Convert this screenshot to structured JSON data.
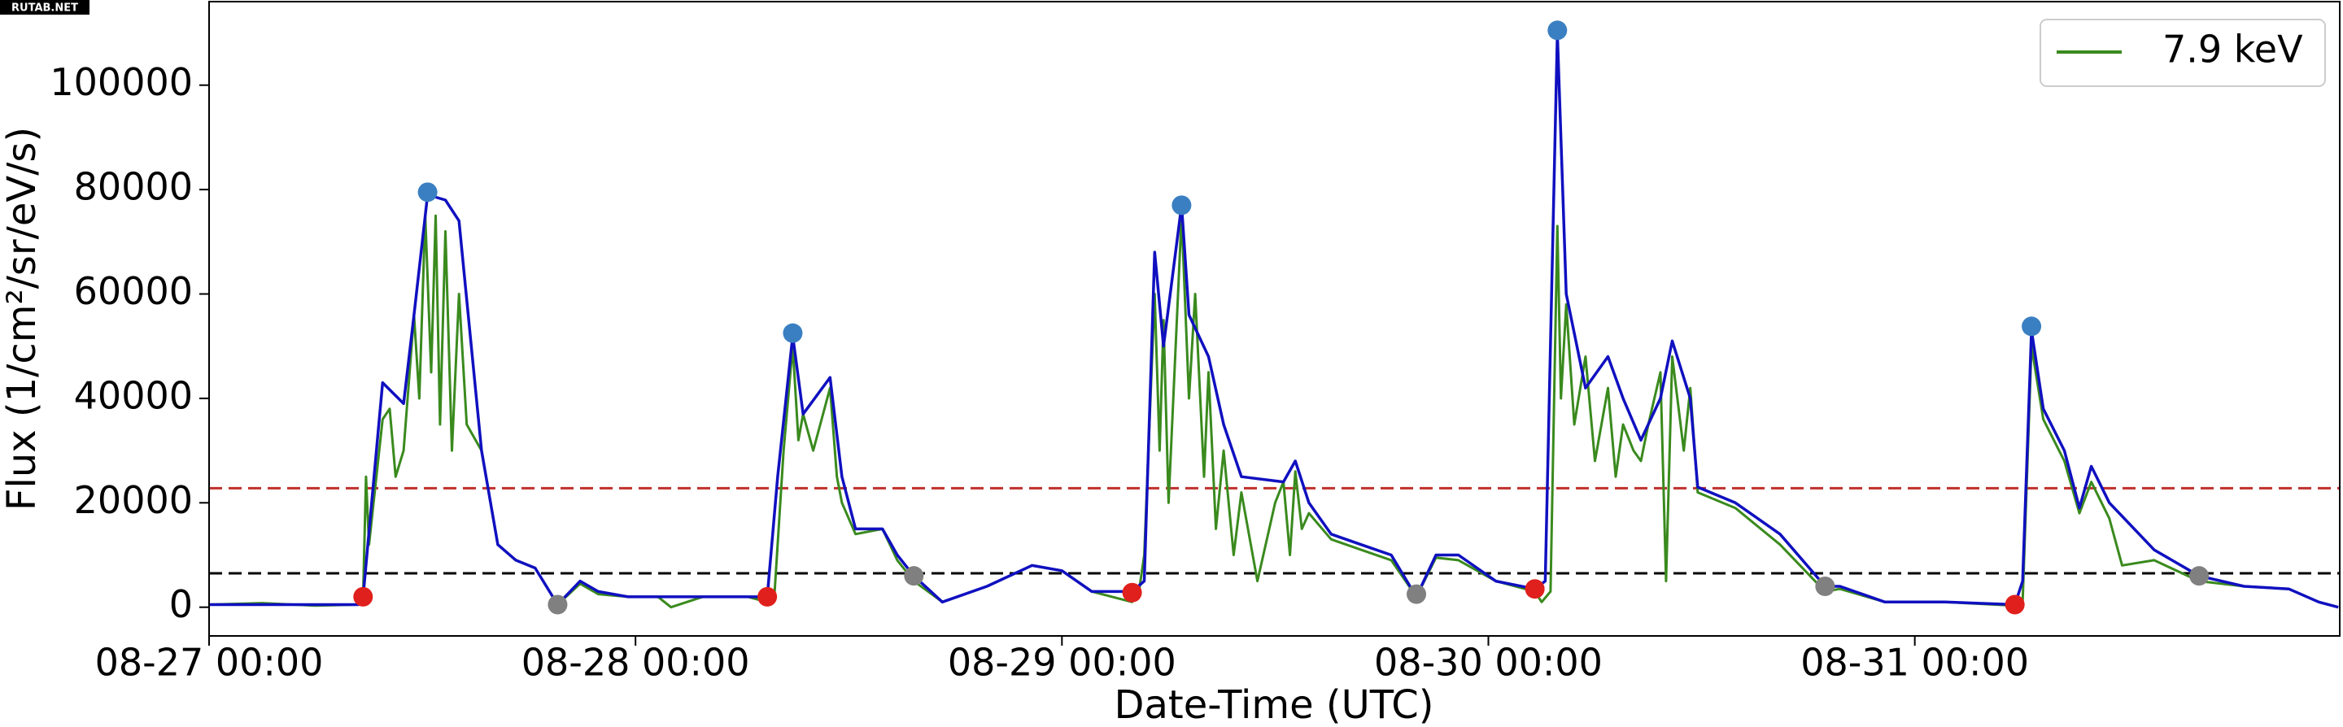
{
  "watermark": "RUTAB.NET",
  "chart_data": {
    "type": "line",
    "xlabel": "Date-Time (UTC)",
    "ylabel": "Flux (1/cm²/sr/eV/s)",
    "xlim": [
      "08-27 00:00",
      "08-31 23:55"
    ],
    "xticks": [
      "08-27 00:00",
      "08-28 00:00",
      "08-29 00:00",
      "08-30 00:00",
      "08-31 00:00"
    ],
    "ylim": [
      -5500,
      116000
    ],
    "yticks": [
      0,
      20000,
      40000,
      60000,
      80000,
      100000
    ],
    "legend": "upper right",
    "series": [
      {
        "name": "7.9 keV",
        "color": "#3a8a1e",
        "x": [
          "08-27 00:00",
          "08-27 03:00",
          "08-27 06:00",
          "08-27 08:25",
          "08-27 08:40",
          "08-27 08:50",
          "08-27 09:00",
          "08-27 09:46",
          "08-27 10:10",
          "08-27 10:30",
          "08-27 10:57",
          "08-27 11:32",
          "08-27 11:50",
          "08-27 12:10",
          "08-27 12:30",
          "08-27 12:45",
          "08-27 13:00",
          "08-27 13:18",
          "08-27 13:40",
          "08-27 14:04",
          "08-27 14:30",
          "08-27 15:20",
          "08-27 16:15",
          "08-27 17:16",
          "08-27 18:21",
          "08-27 19:37",
          "08-27 20:53",
          "08-27 21:54",
          "08-27 23:35",
          "08-28 01:16",
          "08-28 02:00",
          "08-28 03:47",
          "08-28 06:19",
          "08-28 07:25",
          "08-28 07:50",
          "08-28 08:20",
          "08-28 08:51",
          "08-28 09:10",
          "08-28 09:26",
          "08-28 10:00",
          "08-28 10:57",
          "08-28 11:20",
          "08-28 11:37",
          "08-28 12:23",
          "08-28 13:54",
          "08-28 14:44",
          "08-28 15:40",
          "08-28 17:16",
          "08-28 19:47",
          "08-28 22:19",
          "08-29 00:00",
          "08-29 01:41",
          "08-29 03:57",
          "08-29 04:20",
          "08-29 04:38",
          "08-29 05:13",
          "08-29 05:30",
          "08-29 05:43",
          "08-29 06:00",
          "08-29 06:44",
          "08-29 07:09",
          "08-29 07:30",
          "08-29 08:00",
          "08-29 08:15",
          "08-29 08:40",
          "08-29 09:06",
          "08-29 09:40",
          "08-29 10:06",
          "08-29 11:00",
          "08-29 12:00",
          "08-29 12:28",
          "08-29 12:50",
          "08-29 13:08",
          "08-29 13:30",
          "08-29 13:54",
          "08-29 15:09",
          "08-29 16:50",
          "08-29 18:32",
          "08-29 19:57",
          "08-29 21:03",
          "08-29 22:19",
          "08-30 00:25",
          "08-30 02:37",
          "08-30 03:00",
          "08-30 03:30",
          "08-30 03:53",
          "08-30 04:05",
          "08-30 04:23",
          "08-30 04:50",
          "08-30 05:28",
          "08-30 06:00",
          "08-30 06:44",
          "08-30 07:10",
          "08-30 07:35",
          "08-30 08:10",
          "08-30 08:35",
          "08-30 09:00",
          "08-30 09:41",
          "08-30 10:00",
          "08-30 10:21",
          "08-30 11:00",
          "08-30 11:22",
          "08-30 11:47",
          "08-30 13:54",
          "08-30 16:25",
          "08-30 18:57",
          "08-30 19:47",
          "08-30 22:19",
          "08-31 01:41",
          "08-31 05:38",
          "08-31 06:04",
          "08-31 06:34",
          "08-31 07:14",
          "08-31 08:25",
          "08-31 09:16",
          "08-31 09:56",
          "08-31 10:57",
          "08-31 11:40",
          "08-31 13:28",
          "08-31 16:00",
          "08-31 18:32",
          "08-31 21:03",
          "08-31 22:44",
          "08-31 23:50"
        ],
        "values": [
          500,
          800,
          300,
          500,
          2000,
          25000,
          12000,
          36000,
          38000,
          25000,
          30000,
          56000,
          40000,
          75000,
          45000,
          75000,
          35000,
          72000,
          30000,
          60000,
          35000,
          30000,
          12000,
          9000,
          7500,
          500,
          4500,
          2500,
          2000,
          2000,
          0,
          2000,
          2000,
          1000,
          3000,
          30000,
          50000,
          32000,
          37000,
          30000,
          42000,
          25000,
          20000,
          14000,
          15000,
          9000,
          5000,
          1000,
          4000,
          8000,
          7000,
          3000,
          1000,
          3000,
          10000,
          60000,
          30000,
          55000,
          20000,
          75000,
          40000,
          60000,
          25000,
          45000,
          15000,
          30000,
          10000,
          22000,
          5000,
          20000,
          24000,
          10000,
          26000,
          15000,
          18000,
          13000,
          11000,
          9000,
          2000,
          9500,
          9000,
          5000,
          3000,
          1000,
          3000,
          73000,
          40000,
          58000,
          35000,
          48000,
          28000,
          42000,
          25000,
          35000,
          30000,
          28000,
          35000,
          45000,
          5000,
          48000,
          30000,
          42000,
          22000,
          19000,
          12000,
          3000,
          3500,
          1000,
          1000,
          300,
          1000,
          50000,
          36000,
          28000,
          18000,
          24000,
          17000,
          8000,
          9000,
          5000,
          4000,
          3500,
          1000,
          0
        ]
      },
      {
        "color": "#1010c0",
        "x": [
          "08-27 00:00",
          "08-27 08:25",
          "08-27 08:40",
          "08-27 09:46",
          "08-27 10:57",
          "08-27 11:32",
          "08-27 12:18",
          "08-27 13:18",
          "08-27 14:04",
          "08-27 15:20",
          "08-27 16:15",
          "08-27 17:16",
          "08-27 18:21",
          "08-27 19:37",
          "08-27 20:53",
          "08-27 21:54",
          "08-27 23:35",
          "08-28 01:16",
          "08-28 03:47",
          "08-28 06:19",
          "08-28 07:25",
          "08-28 08:00",
          "08-28 08:51",
          "08-28 09:26",
          "08-28 10:57",
          "08-28 11:37",
          "08-28 12:23",
          "08-28 13:54",
          "08-28 14:44",
          "08-28 15:40",
          "08-28 17:16",
          "08-28 19:47",
          "08-28 22:19",
          "08-29 00:00",
          "08-29 01:41",
          "08-29 03:57",
          "08-29 04:38",
          "08-29 05:13",
          "08-29 05:43",
          "08-29 06:44",
          "08-29 07:09",
          "08-29 08:15",
          "08-29 09:06",
          "08-29 10:06",
          "08-29 12:28",
          "08-29 13:08",
          "08-29 13:54",
          "08-29 15:09",
          "08-29 16:50",
          "08-29 18:32",
          "08-29 19:57",
          "08-29 21:03",
          "08-29 22:19",
          "08-30 00:25",
          "08-30 02:37",
          "08-30 03:12",
          "08-30 03:53",
          "08-30 04:23",
          "08-30 05:28",
          "08-30 06:44",
          "08-30 07:35",
          "08-30 08:35",
          "08-30 09:41",
          "08-30 10:21",
          "08-30 11:22",
          "08-30 11:47",
          "08-30 13:54",
          "08-30 16:25",
          "08-30 18:57",
          "08-30 19:47",
          "08-30 22:19",
          "08-31 01:41",
          "08-31 05:38",
          "08-31 06:04",
          "08-31 06:34",
          "08-31 07:14",
          "08-31 08:25",
          "08-31 09:16",
          "08-31 09:56",
          "08-31 10:57",
          "08-31 13:28",
          "08-31 16:00",
          "08-31 18:32",
          "08-31 21:03",
          "08-31 22:44",
          "08-31 23:50"
        ],
        "values": [
          500,
          500,
          2000,
          43000,
          39000,
          56000,
          79000,
          78000,
          74000,
          30000,
          12000,
          9000,
          7500,
          500,
          5000,
          3000,
          2000,
          2000,
          2000,
          2000,
          2000,
          25000,
          52000,
          37000,
          44000,
          25000,
          15000,
          15000,
          10000,
          6000,
          1000,
          4000,
          8000,
          7000,
          3000,
          3000,
          5000,
          68000,
          50000,
          77000,
          56000,
          48000,
          35000,
          25000,
          24000,
          28000,
          20000,
          14000,
          12000,
          10000,
          2000,
          10000,
          10000,
          5000,
          3500,
          5000,
          110000,
          60000,
          42000,
          48000,
          40000,
          32000,
          40000,
          51000,
          40000,
          23000,
          20000,
          14000,
          4000,
          4000,
          1000,
          1000,
          500,
          5000,
          53000,
          38000,
          30000,
          19000,
          27000,
          20000,
          11000,
          6000,
          4000,
          3500,
          1000,
          0
        ]
      }
    ],
    "points": [
      {
        "color": "#3a7fc1",
        "x": [
          "08-27 12:18",
          "08-28 08:51",
          "08-29 06:44",
          "08-30 03:53",
          "08-31 06:34"
        ],
        "values": [
          79500,
          52500,
          77000,
          110500,
          53800
        ]
      },
      {
        "color": "#e0201c",
        "x": [
          "08-27 08:40",
          "08-28 07:25",
          "08-29 03:57",
          "08-30 02:37",
          "08-31 05:38"
        ],
        "values": [
          2000,
          2000,
          2800,
          3500,
          500
        ]
      },
      {
        "color": "#808080",
        "x": [
          "08-27 19:37",
          "08-28 15:40",
          "08-29 19:57",
          "08-30 18:57",
          "08-31 16:00"
        ],
        "values": [
          500,
          6000,
          2500,
          4000,
          6000
        ]
      }
    ],
    "hlines": [
      {
        "value": 22800,
        "color": "#c0302c"
      },
      {
        "value": 6500,
        "color": "#000000"
      }
    ]
  }
}
